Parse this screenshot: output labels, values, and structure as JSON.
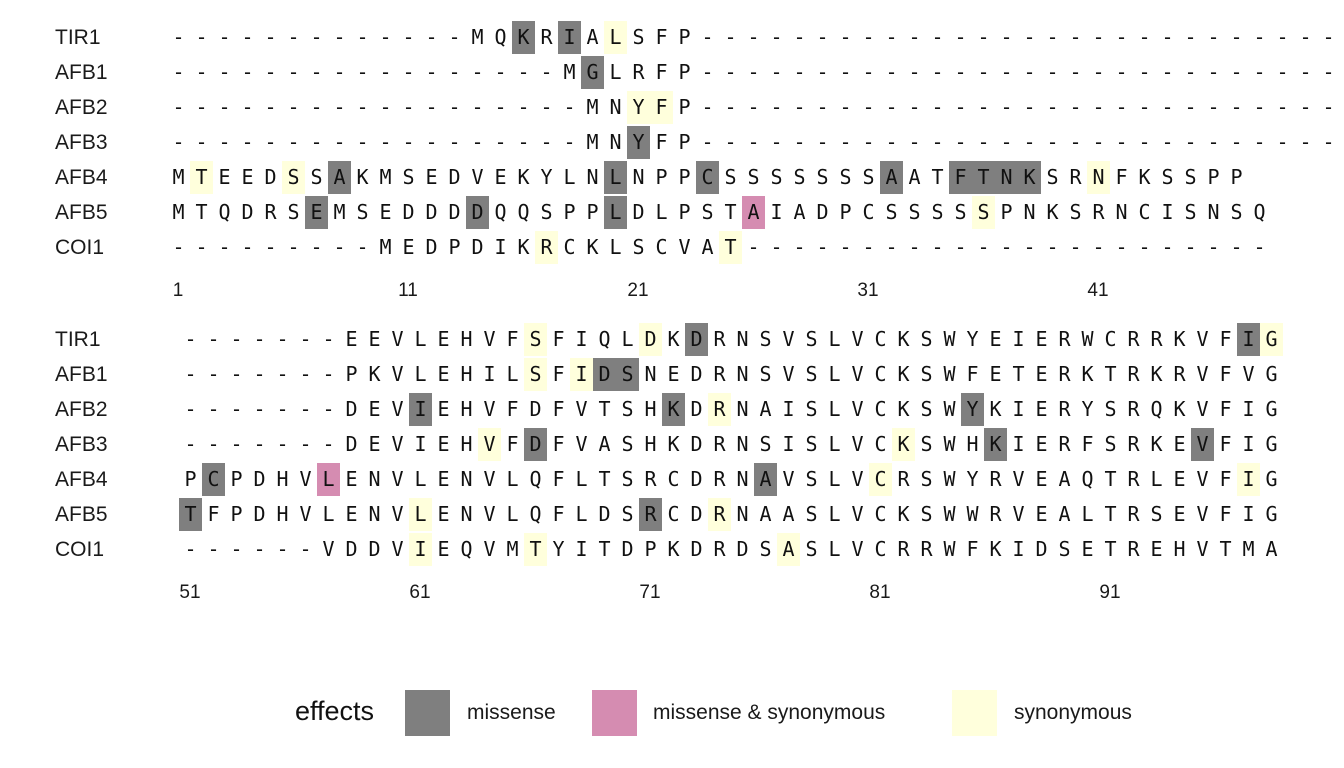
{
  "blocks": [
    {
      "sequences": [
        {
          "name": "TIR1",
          "residues": "-------------MQKRIALSFP----------------------------",
          "effects": {
            "15": "m",
            "17": "m",
            "19": "s"
          }
        },
        {
          "name": "AFB1",
          "residues": "-----------------MGLRFP----------------------------",
          "effects": {
            "18": "m"
          }
        },
        {
          "name": "AFB2",
          "residues": "------------------MNYFP----------------------------",
          "effects": {
            "20": "s",
            "21": "s"
          }
        },
        {
          "name": "AFB3",
          "residues": "------------------MNYFP----------------------------",
          "effects": {
            "20": "m"
          }
        },
        {
          "name": "AFB4",
          "residues": "MTEEDSSAKMSEDVEKYLNLNPPCSSSSSSSAATFTNKSRNFKSSPP",
          "effects": {
            "1": "s",
            "5": "s",
            "7": "m",
            "19": "m",
            "23": "m",
            "31": "m",
            "34": "m",
            "35": "m",
            "36": "m",
            "37": "m",
            "40": "s",
            "47": "m"
          }
        },
        {
          "name": "AFB5",
          "residues": "MTQDRSEMSEDDDDQQSPPLDLPSTAIADPCSSSSSPNKSRNCISNSQ",
          "effects": {
            "6": "m",
            "13": "m",
            "19": "m",
            "25": "b",
            "35": "s"
          }
        },
        {
          "name": "COI1",
          "residues": "---------MEDPDIKRCKLSCVAT-----------------------",
          "effects": {
            "16": "s",
            "24": "s"
          }
        }
      ],
      "ticks": [
        "1",
        "11",
        "21",
        "31",
        "41"
      ]
    },
    {
      "sequences": [
        {
          "name": "TIR1",
          "residues": "-------EEVLEHVFSFIQLDKDRNSVSLVCKSWYEIERWCRRKVFIG",
          "effects": {
            "15": "s",
            "20": "s",
            "22": "m",
            "46": "m",
            "47": "s"
          }
        },
        {
          "name": "AFB1",
          "residues": "-------PKVLEHILSFIDSNEDRNSVSLVCKSWFETERKTRKRVFVG",
          "effects": {
            "15": "s",
            "17": "s",
            "18": "m",
            "19": "m"
          }
        },
        {
          "name": "AFB2",
          "residues": "-------DEVIEHVFDFVTSHKDRNAISLVCKSWYKIERYSRQKVFIG",
          "effects": {
            "10": "m",
            "21": "m",
            "23": "s",
            "34": "m"
          }
        },
        {
          "name": "AFB3",
          "residues": "-------DEVIEHVFDFVASHKDRNSISLVCKSWHKIERFSRKEVFIG",
          "effects": {
            "13": "s",
            "15": "m",
            "31": "s",
            "35": "m",
            "44": "m"
          }
        },
        {
          "name": "AFB4",
          "residues": "PCPDHVLENVLENVLQFLTSRCDRNAVSLVCRSWYRVEAQTRLEVFIG",
          "effects": {
            "1": "m",
            "6": "b",
            "25": "m",
            "30": "s",
            "46": "s"
          }
        },
        {
          "name": "AFB5",
          "residues": "TFPDHVLENVLENVLQFLDSRCDRNAASLVCKSWWRVEALTRSEVFIG",
          "effects": {
            "0": "m",
            "10": "s",
            "20": "m",
            "23": "s"
          }
        },
        {
          "name": "COI1",
          "residues": "------VDDVIEQVMTYITDPKDRDSASLVCRRWFKIDSETREHVTMA",
          "effects": {
            "10": "s",
            "15": "s",
            "26": "s"
          }
        }
      ],
      "ticks": [
        "51",
        "61",
        "71",
        "81",
        "91"
      ]
    }
  ],
  "legend": {
    "title": "effects",
    "items": [
      {
        "code": "m",
        "label": "missense",
        "color": "#7f7f7f"
      },
      {
        "code": "b",
        "label": "missense & synonymous",
        "color": "#d58cb1"
      },
      {
        "code": "s",
        "label": "synonymous",
        "color": "#ffffdc"
      }
    ]
  }
}
